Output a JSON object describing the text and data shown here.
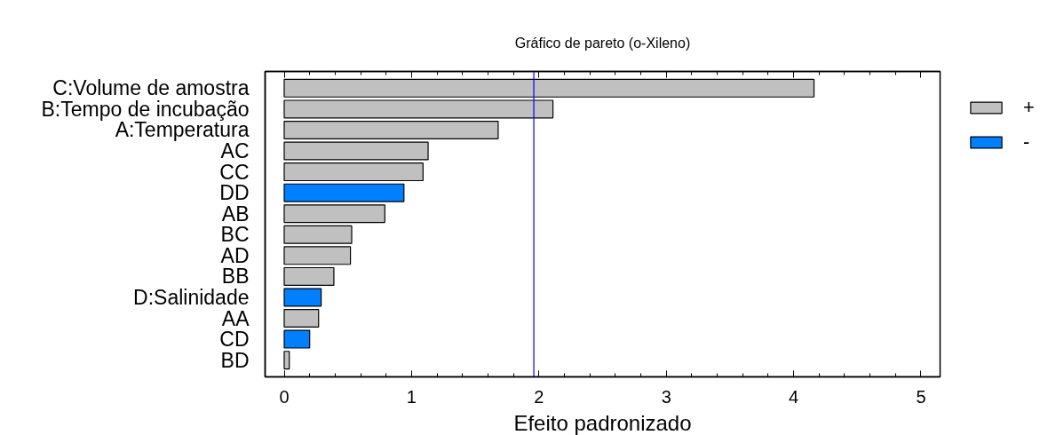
{
  "chart_data": {
    "type": "bar",
    "orientation": "horizontal",
    "title": "Gráfico de pareto (o-Xileno)",
    "xlabel": "Efeito padronizado",
    "categories": [
      "C:Volume de amostra",
      "B:Tempo de incubação",
      "A:Temperatura",
      "AC",
      "CC",
      "DD",
      "AB",
      "BC",
      "AD",
      "BB",
      "D:Salinidade",
      "AA",
      "CD",
      "BD"
    ],
    "series": [
      {
        "name": "+",
        "color": "#c0c0c0",
        "values": [
          4.16,
          2.11,
          1.68,
          1.13,
          1.09,
          null,
          0.79,
          0.53,
          0.52,
          0.39,
          null,
          0.27,
          null,
          0.04
        ]
      },
      {
        "name": "-",
        "color": "#0080ff",
        "values": [
          null,
          null,
          null,
          null,
          null,
          0.94,
          null,
          null,
          null,
          null,
          0.29,
          null,
          0.2,
          null
        ]
      }
    ],
    "xlim": [
      -0.15,
      5.15
    ],
    "xticks": [
      0,
      {
        "value": 0.2,
        "label": null
      },
      {
        "value": 0.4,
        "label": null
      },
      {
        "value": 0.6,
        "label": null
      },
      {
        "value": 0.8,
        "label": null
      },
      1,
      {
        "value": 1.2,
        "label": null
      },
      {
        "value": 1.4,
        "label": null
      },
      {
        "value": 1.6,
        "label": null
      },
      {
        "value": 1.8,
        "label": null
      },
      2,
      {
        "value": 2.2,
        "label": null
      },
      {
        "value": 2.4,
        "label": null
      },
      {
        "value": 2.6,
        "label": null
      },
      {
        "value": 2.8,
        "label": null
      },
      3,
      {
        "value": 3.2,
        "label": null
      },
      {
        "value": 3.4,
        "label": null
      },
      {
        "value": 3.6,
        "label": null
      },
      {
        "value": 3.8,
        "label": null
      },
      4,
      {
        "value": 4.2,
        "label": null
      },
      {
        "value": 4.4,
        "label": null
      },
      {
        "value": 4.6,
        "label": null
      },
      {
        "value": 4.8,
        "label": null
      },
      5
    ],
    "ref_lines": [
      {
        "axis": "x",
        "value": 1.96,
        "color": "#0000ff"
      }
    ],
    "legend": "top right"
  }
}
